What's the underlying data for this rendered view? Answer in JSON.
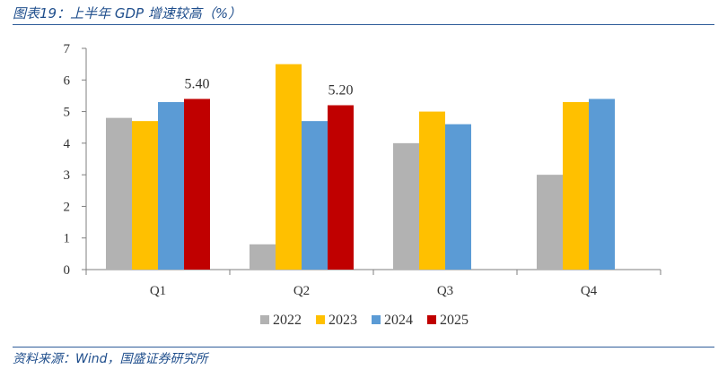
{
  "header": {
    "title": "图表19：上半年 GDP 增速较高（%）"
  },
  "footer": {
    "source": "资料来源：Wind，国盛证券研究所"
  },
  "chart_data": {
    "type": "bar",
    "categories": [
      "Q1",
      "Q2",
      "Q3",
      "Q4"
    ],
    "series": [
      {
        "name": "2022",
        "color": "#b2b2b2",
        "values": [
          4.8,
          0.8,
          4.0,
          3.0
        ]
      },
      {
        "name": "2023",
        "color": "#ffc000",
        "values": [
          4.7,
          6.5,
          5.0,
          5.3
        ]
      },
      {
        "name": "2024",
        "color": "#5b9bd5",
        "values": [
          5.3,
          4.7,
          4.6,
          5.4
        ]
      },
      {
        "name": "2025",
        "color": "#c00000",
        "values": [
          5.4,
          5.2,
          null,
          null
        ]
      }
    ],
    "data_labels": [
      {
        "series": "2025",
        "category": "Q1",
        "text": "5.40"
      },
      {
        "series": "2025",
        "category": "Q2",
        "text": "5.20"
      }
    ],
    "yticks": [
      "0",
      "1",
      "2",
      "3",
      "4",
      "5",
      "6",
      "7"
    ],
    "ylim": [
      0,
      7
    ],
    "grid": false,
    "legend": "bottom"
  }
}
